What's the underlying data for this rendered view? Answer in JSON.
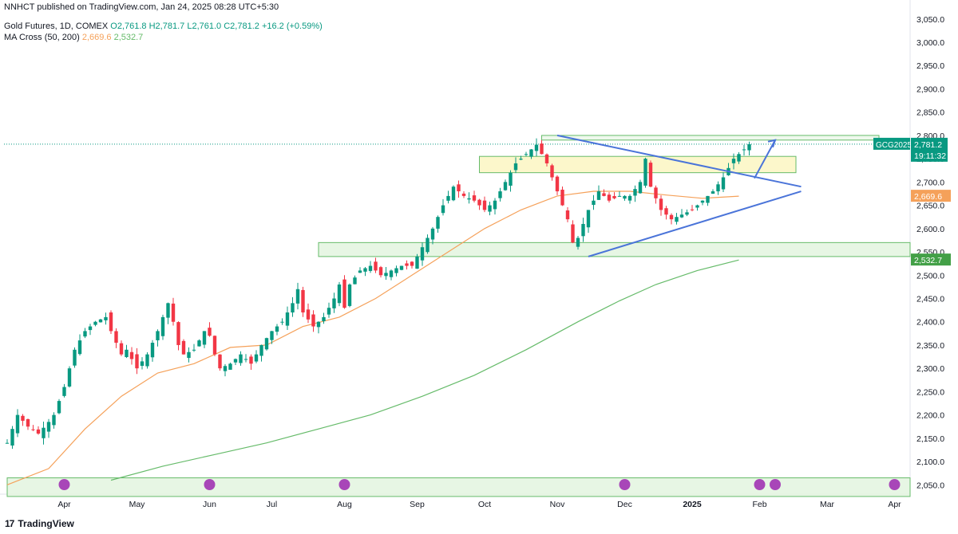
{
  "header": {
    "publisher": "NNHCT published on TradingView.com, Jan 24, 2025 08:28 UTC+5:30",
    "symbol": "Gold Futures, 1D, COMEX",
    "o": "O2,761.8",
    "h": "H2,781.7",
    "l": "L2,761.0",
    "c": "C2,781.2",
    "change": "+16.2 (+0.59%)",
    "ma_label": "MA Cross (50, 200)",
    "ma50": "2,669.6",
    "ma200": "2,532.7"
  },
  "price_labels": {
    "ticker": "GCG2025",
    "last": "2,781.2",
    "countdown": "19:11:32",
    "ma50": "2,669.6",
    "ma200": "2,532.7"
  },
  "brand": {
    "logo": "17",
    "name": "TradingView"
  },
  "colors": {
    "up": "#089981",
    "down": "#f23645",
    "ma50": "#f5a15a",
    "ma200": "#66bb6a",
    "trend": "#4a74d9",
    "zone_fill": "#fbf6c2",
    "zone_green": "#e3f4df",
    "zone_border": "#66bb6a"
  },
  "chart_data": {
    "type": "candlestick",
    "instrument": "Gold Futures, 1D, COMEX",
    "y_ticks": [
      2050,
      2100,
      2150,
      2200,
      2250,
      2300,
      2350,
      2400,
      2450,
      2500,
      2550,
      2600,
      2650,
      2700,
      2750,
      2800,
      2850,
      2900,
      2950,
      3000,
      3050
    ],
    "y_tick_labels": [
      "2,050.0",
      "2,100.0",
      "2,150.0",
      "2,200.0",
      "2,250.0",
      "2,300.0",
      "2,350.0",
      "2,400.0",
      "2,450.0",
      "2,500.0",
      "2,550.0",
      "2,600.0",
      "2,650.0",
      "2,700.0",
      "2,750.0",
      "2,800.0",
      "2,850.0",
      "2,900.0",
      "2,950.0",
      "3,000.0",
      "3,050.0"
    ],
    "ylim": [
      2030,
      3065
    ],
    "x_tick_labels": [
      "Apr",
      "May",
      "Jun",
      "Jul",
      "Aug",
      "Sep",
      "Oct",
      "Nov",
      "Dec",
      "2025",
      "Feb",
      "Mar",
      "Apr"
    ],
    "last_price": 2781.2,
    "ma50_last": 2669.6,
    "ma200_last": 2532.7,
    "price_path": [
      [
        0,
        2140
      ],
      [
        2,
        2200
      ],
      [
        4,
        2175
      ],
      [
        6,
        2160
      ],
      [
        8,
        2185
      ],
      [
        9,
        2200
      ],
      [
        11,
        2260
      ],
      [
        13,
        2340
      ],
      [
        15,
        2380
      ],
      [
        17,
        2400
      ],
      [
        19,
        2410
      ],
      [
        20,
        2380
      ],
      [
        22,
        2330
      ],
      [
        23,
        2340
      ],
      [
        25,
        2300
      ],
      [
        27,
        2330
      ],
      [
        29,
        2380
      ],
      [
        31,
        2440
      ],
      [
        32,
        2400
      ],
      [
        33,
        2350
      ],
      [
        34,
        2330
      ],
      [
        36,
        2340
      ],
      [
        38,
        2380
      ],
      [
        39,
        2370
      ],
      [
        40,
        2330
      ],
      [
        41,
        2300
      ],
      [
        43,
        2310
      ],
      [
        45,
        2330
      ],
      [
        47,
        2310
      ],
      [
        49,
        2350
      ],
      [
        51,
        2380
      ],
      [
        53,
        2400
      ],
      [
        55,
        2440
      ],
      [
        56,
        2470
      ],
      [
        57,
        2420
      ],
      [
        59,
        2390
      ],
      [
        61,
        2410
      ],
      [
        63,
        2450
      ],
      [
        64,
        2480
      ],
      [
        65,
        2430
      ],
      [
        66,
        2480
      ],
      [
        68,
        2510
      ],
      [
        70,
        2520
      ],
      [
        72,
        2500
      ],
      [
        74,
        2510
      ],
      [
        76,
        2520
      ],
      [
        78,
        2520
      ],
      [
        80,
        2560
      ],
      [
        82,
        2600
      ],
      [
        84,
        2650
      ],
      [
        86,
        2690
      ],
      [
        88,
        2670
      ],
      [
        90,
        2660
      ],
      [
        92,
        2640
      ],
      [
        94,
        2660
      ],
      [
        96,
        2700
      ],
      [
        98,
        2740
      ],
      [
        100,
        2760
      ],
      [
        102,
        2780
      ],
      [
        103,
        2760
      ],
      [
        104,
        2740
      ],
      [
        106,
        2680
      ],
      [
        108,
        2620
      ],
      [
        109,
        2570
      ],
      [
        110,
        2580
      ],
      [
        112,
        2640
      ],
      [
        114,
        2680
      ],
      [
        116,
        2660
      ],
      [
        118,
        2670
      ],
      [
        120,
        2670
      ],
      [
        122,
        2700
      ],
      [
        123,
        2750
      ],
      [
        124,
        2690
      ],
      [
        126,
        2640
      ],
      [
        128,
        2620
      ],
      [
        130,
        2630
      ],
      [
        132,
        2640
      ],
      [
        134,
        2660
      ],
      [
        136,
        2680
      ],
      [
        138,
        2710
      ],
      [
        139,
        2730
      ],
      [
        140,
        2750
      ],
      [
        141,
        2760
      ],
      [
        142,
        2770
      ],
      [
        143,
        2781.2
      ]
    ],
    "ma50_path": [
      [
        0,
        2050
      ],
      [
        8,
        2085
      ],
      [
        15,
        2170
      ],
      [
        22,
        2240
      ],
      [
        29,
        2290
      ],
      [
        36,
        2310
      ],
      [
        43,
        2345
      ],
      [
        50,
        2350
      ],
      [
        57,
        2390
      ],
      [
        64,
        2410
      ],
      [
        71,
        2450
      ],
      [
        78,
        2500
      ],
      [
        85,
        2550
      ],
      [
        92,
        2600
      ],
      [
        99,
        2640
      ],
      [
        106,
        2670
      ],
      [
        113,
        2680
      ],
      [
        120,
        2680
      ],
      [
        127,
        2672
      ],
      [
        134,
        2665
      ],
      [
        141,
        2669.6
      ]
    ],
    "ma200_path": [
      [
        20,
        2060
      ],
      [
        30,
        2090
      ],
      [
        40,
        2115
      ],
      [
        50,
        2140
      ],
      [
        60,
        2170
      ],
      [
        70,
        2200
      ],
      [
        80,
        2240
      ],
      [
        90,
        2285
      ],
      [
        100,
        2340
      ],
      [
        110,
        2400
      ],
      [
        118,
        2445
      ],
      [
        125,
        2480
      ],
      [
        133,
        2510
      ],
      [
        141,
        2532.7
      ]
    ],
    "zones": [
      {
        "x0": 103,
        "x1": 168,
        "y0": 2790,
        "y1": 2800
      },
      {
        "x0": 91,
        "x1": 152,
        "y0": 2720,
        "y1": 2755
      },
      {
        "x0": 60,
        "x1": 174,
        "y0": 2540,
        "y1": 2570
      },
      {
        "x0": 0,
        "x1": 174,
        "y0": 2025,
        "y1": 2065
      }
    ],
    "trendlines": [
      {
        "from": [
          106,
          2800
        ],
        "to": [
          153,
          2690
        ]
      },
      {
        "from": [
          112,
          2540
        ],
        "to": [
          153,
          2680
        ]
      }
    ],
    "arrow": {
      "from": [
        144,
        2708
      ],
      "to": [
        148,
        2790
      ]
    },
    "x_tick_index": [
      11,
      25,
      39,
      51,
      65,
      79,
      92,
      106,
      119,
      132,
      145,
      158,
      171
    ]
  }
}
